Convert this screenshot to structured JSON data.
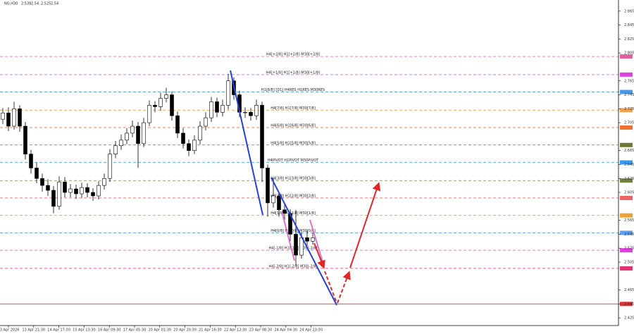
{
  "chart_data": {
    "type": "candlestick",
    "symbol": "NG,H30",
    "header_values": [
      2.539,
      2.54,
      2.525,
      2.54
    ],
    "time_labels": [
      "13 Apr 2026",
      "13 Apr 21:30",
      "14 Apr 17:30",
      "15 Apr 13:30",
      "16 Apr 09:30",
      "17 Apr 05:30",
      "20 Apr 01:30",
      "20 Apr 20:30",
      "21 Apr 16:30",
      "22 Apr 12:30",
      "23 Apr 08:30",
      "24 Apr 04:30",
      "24 Apr 23:30"
    ],
    "ylim": [
      2.414,
      2.881
    ],
    "yticks": [
      2.865,
      2.845,
      2.825,
      2.805,
      2.765,
      2.745,
      2.725,
      2.705,
      2.665,
      2.645,
      2.625,
      2.605,
      2.565,
      2.545,
      2.525,
      2.505,
      2.465,
      2.445,
      2.425
    ],
    "open": [
      2.71,
      2.719,
      2.7,
      2.725,
      2.7,
      2.66,
      2.64,
      2.625,
      2.615,
      2.608,
      2.585,
      2.62,
      2.605,
      2.61,
      2.603,
      2.612,
      2.605,
      2.6,
      2.615,
      2.625,
      2.66,
      2.672,
      2.68,
      2.69,
      2.7,
      2.675,
      2.705,
      2.73,
      2.728,
      2.74,
      2.745,
      2.715,
      2.69,
      2.675,
      2.665,
      2.68,
      2.7,
      2.712,
      2.735,
      2.72,
      2.73,
      2.765,
      2.745,
      2.72,
      2.72,
      2.715,
      2.73,
      2.64,
      2.59,
      2.6,
      2.58,
      2.575,
      2.545,
      2.515,
      2.54,
      2.535
    ],
    "high": [
      2.726,
      2.727,
      2.735,
      2.73,
      2.706,
      2.666,
      2.648,
      2.632,
      2.624,
      2.614,
      2.628,
      2.627,
      2.617,
      2.616,
      2.619,
      2.618,
      2.611,
      2.621,
      2.632,
      2.667,
      2.679,
      2.688,
      2.697,
      2.708,
      2.706,
      2.712,
      2.737,
      2.736,
      2.748,
      2.755,
      2.75,
      2.721,
      2.697,
      2.681,
      2.687,
      2.707,
      2.72,
      2.742,
      2.741,
      2.738,
      2.775,
      2.77,
      2.751,
      2.727,
      2.726,
      2.738,
      2.735,
      2.645,
      2.625,
      2.606,
      2.59,
      2.581,
      2.58,
      2.548,
      2.55,
      2.547
    ],
    "low": [
      2.703,
      2.693,
      2.695,
      2.692,
      2.652,
      2.632,
      2.618,
      2.606,
      2.6,
      2.575,
      2.58,
      2.598,
      2.598,
      2.596,
      2.597,
      2.598,
      2.593,
      2.595,
      2.609,
      2.62,
      2.654,
      2.666,
      2.674,
      2.684,
      2.64,
      2.67,
      2.7,
      2.72,
      2.722,
      2.734,
      2.708,
      2.683,
      2.668,
      2.657,
      2.66,
      2.674,
      2.694,
      2.706,
      2.713,
      2.714,
      2.724,
      2.738,
      2.713,
      2.712,
      2.708,
      2.709,
      2.62,
      2.57,
      2.583,
      2.57,
      2.565,
      2.535,
      2.5,
      2.51,
      2.528,
      2.53
    ],
    "close": [
      2.719,
      2.7,
      2.725,
      2.7,
      2.66,
      2.64,
      2.625,
      2.615,
      2.608,
      2.585,
      2.62,
      2.605,
      2.61,
      2.603,
      2.612,
      2.605,
      2.6,
      2.615,
      2.625,
      2.66,
      2.672,
      2.68,
      2.69,
      2.7,
      2.675,
      2.705,
      2.73,
      2.728,
      2.74,
      2.745,
      2.715,
      2.69,
      2.675,
      2.665,
      2.68,
      2.7,
      2.712,
      2.735,
      2.72,
      2.73,
      2.765,
      2.745,
      2.72,
      2.72,
      2.715,
      2.73,
      2.64,
      2.59,
      2.6,
      2.58,
      2.575,
      2.545,
      2.515,
      2.54,
      2.535,
      2.54
    ],
    "levels": [
      {
        "label": "H4[+2/8] H1[+2/8] M30[+2/8]",
        "value": 2.8,
        "color": "#e0609a"
      },
      {
        "label": "H4[+1/8] H1[+1/8] M30[+1/8]",
        "value": 2.774,
        "color": "#e040e0"
      },
      {
        "label": "H1[8/8] [D1] H4RES H1RES M30RES",
        "value": 2.749,
        "color": "#4a9ae8"
      },
      {
        "label": "H4[7/8] H1[7/8] M30[7/8]",
        "value": 2.723,
        "color": "#f0a050"
      },
      {
        "label": "H4[6/8] H1[6/8] M30[6/8]",
        "value": 2.698,
        "color": "#f07030"
      },
      {
        "label": "H4[5/8] H1[5/8] M30[5/8]",
        "value": 2.673,
        "color": "#6a7a30"
      },
      {
        "label": "H4PIVOT H1PIVOT M30PIVOT",
        "value": 2.648,
        "color": "#3a9af0"
      },
      {
        "label": "H4[3/8] H1[3/8] M30[3/8]",
        "value": 2.622,
        "color": "#708040"
      },
      {
        "label": "H4[2/8] H1[2/8] M30[2/8]",
        "value": 2.597,
        "color": "#f06060"
      },
      {
        "label": "H4[1/8] H1[1/8] M30[1/8]",
        "value": 2.572,
        "color": "#f0a030"
      },
      {
        "label": "H4[0/8] H1[0/8] M30[0/8]",
        "value": 2.547,
        "color": "#5aa0f0"
      },
      {
        "label": "H4[-1/8] H1[-1/8] M30[-1/8]",
        "value": 2.522,
        "color": "#e040e0"
      },
      {
        "label": "H4[-2/8] H1[-2/8] M30[-2/8]",
        "value": 2.496,
        "color": "#e03070"
      }
    ],
    "target_line": {
      "value": 2.445,
      "color": "#e03030"
    }
  }
}
